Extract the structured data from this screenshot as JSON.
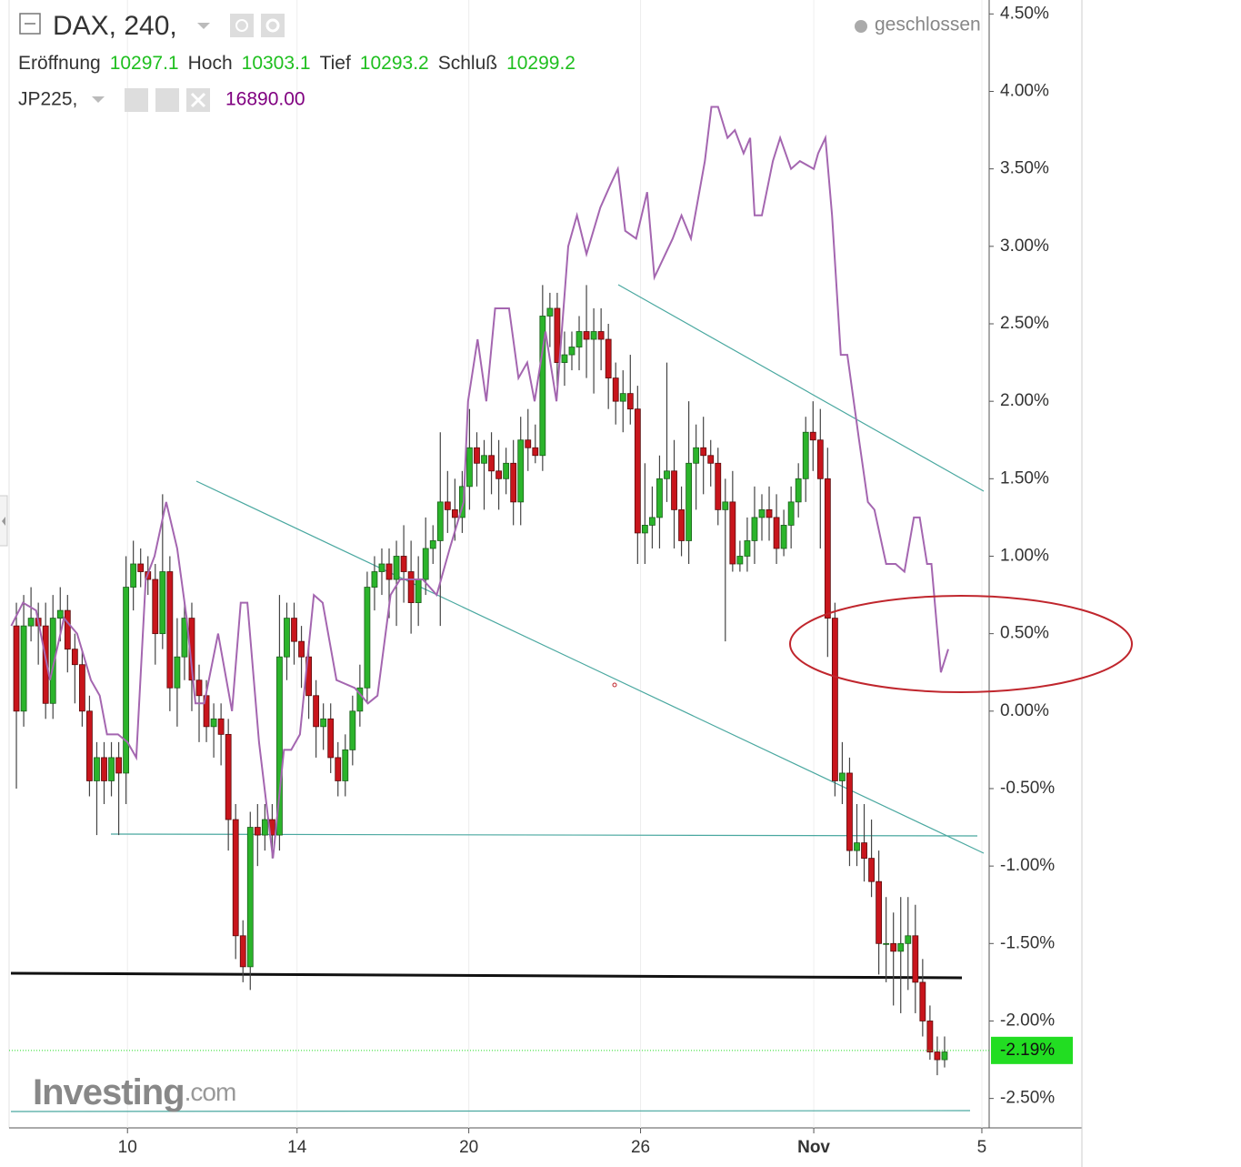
{
  "header": {
    "symbol": "DAX, 240,",
    "fields": [
      {
        "label": "Eröffnung",
        "value": "10297.1"
      },
      {
        "label": "Hoch",
        "value": "10303.1"
      },
      {
        "label": "Tief",
        "value": "10293.2"
      },
      {
        "label": "Schluß",
        "value": "10299.2"
      }
    ],
    "compare": {
      "symbol": "JP225,",
      "value": "16890.00"
    },
    "status": "geschlossen"
  },
  "logo": {
    "brand": "Investing",
    "suffix": ".com"
  },
  "chart_data": {
    "type": "candlestick",
    "candles": {
      "up_color": "#2bb42b",
      "down_color": "#c8151c",
      "open": [
        0.55,
        0.0,
        0.55,
        0.6,
        0.55,
        0.05,
        0.6,
        0.65,
        0.4,
        0.3,
        0.0,
        -0.45,
        -0.3,
        -0.45,
        -0.3,
        -0.4,
        0.8,
        0.95,
        0.9,
        0.85,
        0.5,
        0.9,
        0.15,
        0.35,
        0.6,
        0.2,
        0.1,
        -0.1,
        -0.05,
        -0.15,
        -0.7,
        -1.45,
        -1.65,
        -0.75,
        -0.8,
        -0.7,
        -0.8,
        0.35,
        0.6,
        0.45,
        0.35,
        0.1,
        -0.1,
        -0.05,
        -0.3,
        -0.45,
        -0.25,
        0.0,
        0.15,
        0.8,
        0.9,
        0.95,
        0.85,
        1.0,
        0.9,
        0.7,
        0.85,
        1.05,
        1.1,
        1.35,
        1.3,
        1.25,
        1.45,
        1.7,
        1.6,
        1.65,
        1.55,
        1.5,
        1.6,
        1.35,
        1.75,
        1.7,
        1.65,
        2.55,
        2.6,
        2.25,
        2.3,
        2.35,
        2.45,
        2.4,
        2.45,
        2.4,
        2.15,
        2.0,
        2.05,
        1.95,
        1.15,
        1.2,
        1.25,
        1.5,
        1.55,
        1.3,
        1.1,
        1.6,
        1.7,
        1.65,
        1.6,
        1.3,
        1.35,
        0.95,
        1.0,
        1.1,
        1.25,
        1.3,
        1.25,
        1.05,
        1.2,
        1.35,
        1.5,
        1.8,
        1.75,
        1.5,
        0.6,
        -0.45,
        -0.4,
        -0.9,
        -0.85,
        -0.95,
        -1.1,
        -1.5,
        -1.5,
        -1.55,
        -1.5,
        -1.45,
        -1.75,
        -2.0,
        -2.2,
        -2.25
      ],
      "high": [
        0.7,
        0.75,
        0.8,
        0.7,
        0.7,
        0.75,
        0.8,
        0.75,
        0.5,
        0.4,
        0.1,
        -0.2,
        -0.2,
        -0.2,
        -0.2,
        1.0,
        1.1,
        1.05,
        1.0,
        0.95,
        1.4,
        1.0,
        0.6,
        0.7,
        0.7,
        0.3,
        0.2,
        0.05,
        0.05,
        -0.05,
        -0.6,
        -1.35,
        -0.65,
        -0.6,
        -0.6,
        -0.6,
        0.75,
        0.7,
        0.7,
        0.55,
        0.45,
        0.2,
        0.05,
        0.05,
        -0.2,
        -0.15,
        0.1,
        0.3,
        0.9,
        1.0,
        1.05,
        1.05,
        1.1,
        1.2,
        1.1,
        1.0,
        1.25,
        1.2,
        1.8,
        1.55,
        1.5,
        1.55,
        1.95,
        1.8,
        1.75,
        1.8,
        1.75,
        1.7,
        1.75,
        1.9,
        1.95,
        1.85,
        2.75,
        2.7,
        2.7,
        2.45,
        2.45,
        2.55,
        2.75,
        2.6,
        2.6,
        2.5,
        2.25,
        2.2,
        2.3,
        2.1,
        1.6,
        1.45,
        1.65,
        2.25,
        1.75,
        1.45,
        2.0,
        1.85,
        1.9,
        1.75,
        1.7,
        1.5,
        1.55,
        1.1,
        1.25,
        1.45,
        1.4,
        1.45,
        1.4,
        1.3,
        1.45,
        1.6,
        1.9,
        2.0,
        1.95,
        1.7,
        0.7,
        -0.2,
        -0.3,
        -0.6,
        -0.6,
        -0.7,
        -0.9,
        -1.2,
        -1.3,
        -1.2,
        -1.2,
        -1.25,
        -1.6,
        -1.9,
        -2.1,
        -2.1
      ],
      "low": [
        -0.5,
        -0.1,
        0.45,
        0.3,
        -0.05,
        -0.05,
        0.45,
        0.25,
        0.05,
        -0.1,
        -0.55,
        -0.8,
        -0.6,
        -0.55,
        -0.8,
        -0.6,
        0.65,
        0.8,
        0.75,
        0.3,
        0.4,
        0.0,
        -0.1,
        0.2,
        0.0,
        -0.2,
        -0.2,
        -0.3,
        -0.35,
        -0.9,
        -1.6,
        -1.75,
        -1.8,
        -1.0,
        -0.9,
        -0.95,
        -0.9,
        0.2,
        0.3,
        0.15,
        -0.05,
        -0.3,
        -0.25,
        -0.4,
        -0.55,
        -0.55,
        -0.35,
        -0.1,
        0.05,
        0.65,
        0.75,
        0.6,
        0.55,
        0.7,
        0.5,
        0.55,
        0.75,
        0.95,
        0.55,
        1.15,
        1.1,
        1.15,
        1.3,
        1.45,
        1.3,
        1.4,
        1.3,
        1.4,
        1.2,
        1.2,
        1.55,
        1.6,
        1.55,
        2.35,
        2.1,
        2.1,
        2.2,
        2.2,
        2.15,
        2.05,
        2.2,
        1.95,
        1.85,
        1.8,
        1.85,
        0.95,
        0.95,
        1.05,
        1.05,
        1.35,
        1.05,
        1.0,
        0.95,
        1.3,
        1.4,
        1.45,
        1.2,
        0.45,
        0.9,
        0.9,
        0.9,
        0.95,
        1.1,
        1.1,
        0.95,
        1.0,
        1.05,
        1.25,
        1.35,
        1.55,
        1.05,
        0.35,
        -0.55,
        -0.6,
        -1.0,
        -1.0,
        -1.1,
        -1.2,
        -1.7,
        -1.75,
        -1.9,
        -1.95,
        -1.8,
        -1.95,
        -2.1,
        -2.25,
        -2.35,
        -2.3
      ],
      "close": [
        0.0,
        0.55,
        0.6,
        0.55,
        0.05,
        0.6,
        0.65,
        0.4,
        0.3,
        0.0,
        -0.45,
        -0.3,
        -0.45,
        -0.3,
        -0.4,
        0.8,
        0.95,
        0.9,
        0.85,
        0.5,
        0.9,
        0.15,
        0.35,
        0.6,
        0.2,
        0.1,
        -0.1,
        -0.05,
        -0.15,
        -0.7,
        -1.45,
        -1.65,
        -0.75,
        -0.8,
        -0.7,
        -0.8,
        0.35,
        0.6,
        0.45,
        0.35,
        0.1,
        -0.1,
        -0.05,
        -0.3,
        -0.45,
        -0.25,
        0.0,
        0.15,
        0.8,
        0.9,
        0.95,
        0.85,
        1.0,
        0.9,
        0.7,
        0.85,
        1.05,
        1.1,
        1.35,
        1.3,
        1.25,
        1.45,
        1.7,
        1.6,
        1.65,
        1.55,
        1.5,
        1.6,
        1.35,
        1.75,
        1.7,
        1.65,
        2.55,
        2.6,
        2.25,
        2.3,
        2.35,
        2.45,
        2.4,
        2.45,
        2.4,
        2.15,
        2.0,
        2.05,
        1.95,
        1.15,
        1.2,
        1.25,
        1.5,
        1.55,
        1.3,
        1.1,
        1.6,
        1.7,
        1.65,
        1.6,
        1.3,
        1.35,
        0.95,
        1.0,
        1.1,
        1.25,
        1.3,
        1.25,
        1.05,
        1.2,
        1.35,
        1.5,
        1.8,
        1.75,
        1.5,
        0.6,
        -0.45,
        -0.4,
        -0.9,
        -0.85,
        -0.95,
        -1.1,
        -1.5,
        -1.5,
        -1.55,
        -1.5,
        -1.45,
        -1.75,
        -2.0,
        -2.2,
        -2.25,
        -2.2
      ]
    },
    "lines": [
      {
        "color": "#a466b0",
        "x": [
          -0.7,
          0.9,
          2.7,
          4.6,
          6.5,
          8.3,
          10.2,
          11.4,
          12.4,
          13.9,
          15.2,
          16.4,
          17.7,
          18.9,
          20.5,
          22.0,
          23.3,
          24.5,
          25.7,
          27.6,
          29.5,
          30.7,
          31.6,
          33.2,
          35.1,
          36.6,
          37.6,
          38.8,
          40.7,
          41.9,
          43.8,
          46.3,
          48.1,
          49.4,
          51.2,
          52.5,
          55.6,
          57.5,
          59.3,
          61.2,
          61.8,
          63.1,
          64.3,
          65.5,
          67.4,
          68.7,
          69.9,
          70.9,
          72.4,
          73.9,
          75.5,
          76.7,
          78.0,
          79.9,
          81.3,
          82.3,
          83.3,
          84.8,
          86.3,
          87.3,
          89.8,
          91.0,
          92.3,
          94.2,
          95.1,
          96.0,
          97.3,
          98.3,
          99.5,
          100.4,
          101.0,
          102.0,
          103.5,
          104.5,
          106.0,
          107.2,
          109.1,
          109.7,
          110.7,
          111.6,
          112.8,
          113.7,
          115.3,
          116.5,
          117.4,
          119.0,
          120.3,
          121.5,
          122.8,
          123.6,
          124.6,
          125.2,
          126.5,
          127.5
        ],
        "values": [
          0.55,
          0.7,
          0.65,
          0.2,
          0.6,
          0.5,
          0.2,
          0.1,
          -0.15,
          -0.15,
          -0.2,
          -0.3,
          0.85,
          1.0,
          1.35,
          1.05,
          0.6,
          0.05,
          0.05,
          0.5,
          0.0,
          0.7,
          0.7,
          -0.2,
          -0.95,
          -0.25,
          -0.25,
          -0.15,
          0.75,
          0.7,
          0.2,
          0.15,
          0.05,
          0.1,
          0.75,
          0.85,
          0.85,
          0.75,
          1.05,
          1.35,
          2.0,
          2.4,
          2.0,
          2.6,
          2.6,
          2.15,
          2.25,
          2.0,
          2.45,
          2.0,
          3.0,
          3.2,
          2.95,
          3.25,
          3.4,
          3.5,
          3.1,
          3.05,
          3.35,
          2.8,
          3.05,
          3.2,
          3.05,
          3.55,
          3.9,
          3.9,
          3.7,
          3.75,
          3.6,
          3.7,
          3.2,
          3.2,
          3.55,
          3.7,
          3.5,
          3.55,
          3.5,
          3.6,
          3.7,
          3.2,
          2.3,
          2.3,
          1.75,
          1.35,
          1.3,
          0.95,
          0.95,
          0.9,
          1.25,
          1.25,
          0.95,
          0.95,
          0.25,
          0.4
        ]
      }
    ],
    "last": {
      "value": -2.19,
      "label": "-2.19%",
      "color": "#22dd22"
    },
    "xlim": [
      -1,
      133.1
    ],
    "xticks": [
      {
        "value": 15.2,
        "label": "10"
      },
      {
        "value": 38.4,
        "label": "14"
      },
      {
        "value": 61.9,
        "label": "20"
      },
      {
        "value": 85.4,
        "label": "26"
      },
      {
        "value": 109.1,
        "label": "Nov"
      },
      {
        "value": 132.1,
        "label": "5"
      }
    ],
    "ylim": [
      -2.69,
      4.59
    ],
    "yticks": [
      {
        "value": 4.5,
        "label": "4.50%"
      },
      {
        "value": 4.0,
        "label": "4.00%"
      },
      {
        "value": 3.5,
        "label": "3.50%"
      },
      {
        "value": 3.0,
        "label": "3.00%"
      },
      {
        "value": 2.5,
        "label": "2.50%"
      },
      {
        "value": 2.0,
        "label": "2.00%"
      },
      {
        "value": 1.5,
        "label": "1.50%"
      },
      {
        "value": 1.0,
        "label": "1.00%"
      },
      {
        "value": 0.5,
        "label": "0.50%"
      },
      {
        "value": 0.0,
        "label": "0.00%"
      },
      {
        "value": -0.5,
        "label": "-0.50%"
      },
      {
        "value": -1.0,
        "label": "-1.00%"
      },
      {
        "value": -1.5,
        "label": "-1.50%"
      },
      {
        "value": -2.0,
        "label": "-2.00%"
      },
      {
        "value": -2.5,
        "label": "-2.50%"
      }
    ],
    "grid": "x"
  }
}
